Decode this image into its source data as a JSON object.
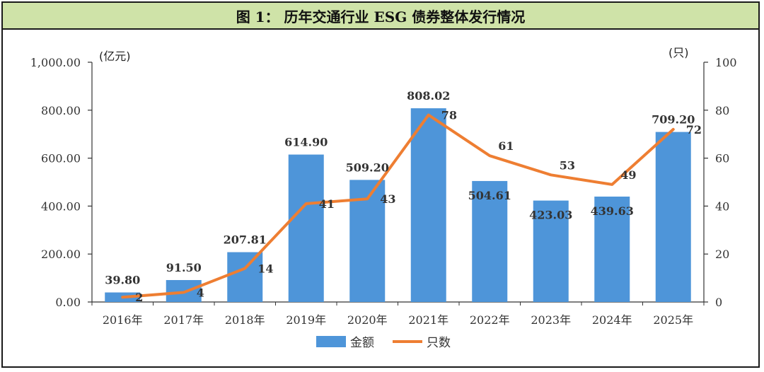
{
  "title": "图 1： 历年交通行业 ESG 债券整体发行情况",
  "chart_data": {
    "type": "bar",
    "categories": [
      "2016年",
      "2017年",
      "2018年",
      "2019年",
      "2020年",
      "2021年",
      "2022年",
      "2023年",
      "2024年",
      "2025年"
    ],
    "series": [
      {
        "name": "金额",
        "type": "bar",
        "axis": "left",
        "color": "#4e95d9",
        "values": [
          39.8,
          91.5,
          207.81,
          614.9,
          509.2,
          808.02,
          504.61,
          423.03,
          439.63,
          709.2
        ],
        "labels": [
          "39.80",
          "91.50",
          "207.81",
          "614.90",
          "509.20",
          "808.02",
          "504.61",
          "423.03",
          "439.63",
          "709.20"
        ]
      },
      {
        "name": "只数",
        "type": "line",
        "axis": "right",
        "color": "#ee7e32",
        "values": [
          2,
          4,
          14,
          41,
          43,
          78,
          61,
          53,
          49,
          72
        ],
        "labels": [
          "2",
          "4",
          "14",
          "41",
          "43",
          "78",
          "61",
          "53",
          "49",
          "72"
        ]
      }
    ],
    "y_left": {
      "unit": "(亿元)",
      "ylim": [
        0,
        1000
      ],
      "ticks": [
        "0.00",
        "200.00",
        "400.00",
        "600.00",
        "800.00",
        "1,000.00"
      ]
    },
    "y_right": {
      "unit": "(只)",
      "ylim": [
        0,
        100
      ],
      "ticks": [
        "0",
        "20",
        "40",
        "60",
        "80",
        "100"
      ]
    },
    "grid": false,
    "legend_position": "bottom"
  }
}
